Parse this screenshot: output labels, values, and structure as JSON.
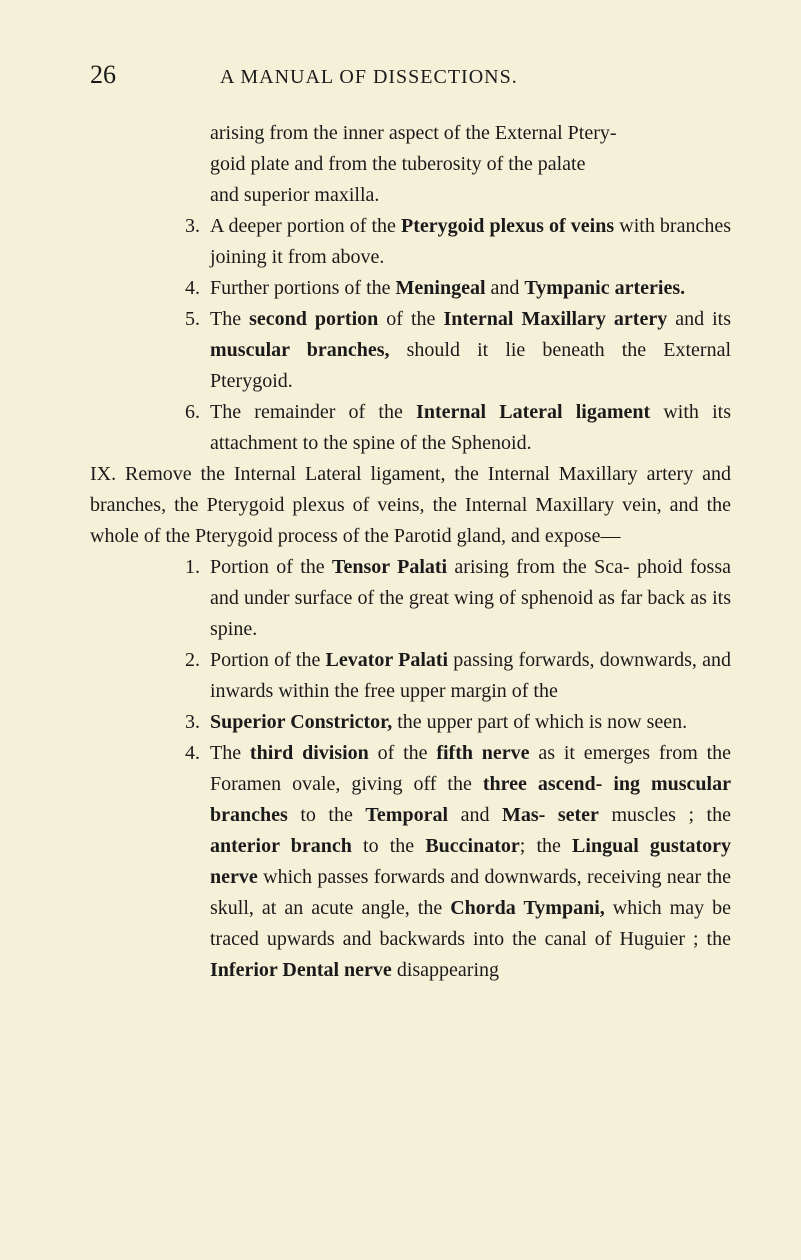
{
  "page_number": "26",
  "running_title": "A MANUAL OF DISSECTIONS.",
  "background_color": "#f5f0d8",
  "text_color": "#1a1a1a",
  "font_size_body": 20,
  "font_size_pagenum": 26,
  "font_size_header": 20,
  "cont1_a": "arising from the inner aspect of the External Ptery-",
  "cont1_b": "goid plate and from the tuberosity of the palate",
  "cont1_c": "and superior maxilla.",
  "n3": "3.",
  "i3a": "A deeper portion of the ",
  "i3b": "Pterygoid plexus of veins",
  "i3c": " with branches joining it from above.",
  "n4": "4.",
  "i4a": "Further portions of the ",
  "i4b": "Meningeal",
  "i4c": " and ",
  "i4d": "Tympanic arteries.",
  "n5": "5.",
  "i5a": "The ",
  "i5b": "second portion",
  "i5c": " of the ",
  "i5d": "Internal Maxillary artery",
  "i5e": " and its ",
  "i5f": "muscular branches,",
  "i5g": " should it lie beneath the External Pterygoid.",
  "n6": "6.",
  "i6a": "The remainder of the ",
  "i6b": "Internal Lateral ligament",
  "i6c": " with its attachment to the spine of the Sphenoid.",
  "px_a": "IX.  Remove the Internal Lateral ligament, the Internal Maxillary artery and branches, the Pterygoid plexus of veins, the Internal Maxillary vein, and the whole of the Pterygoid process of the Parotid gland, and expose—",
  "m1": "1.",
  "j1a": "Portion of the ",
  "j1b": "Tensor Palati",
  "j1c": " arising from the Sca- phoid fossa and under surface of the great wing of sphenoid as far back as its spine.",
  "m2": "2.",
  "j2a": "Portion of the ",
  "j2b": "Levator Palati",
  "j2c": " passing forwards, downwards, and inwards within the free upper margin of the",
  "m3": "3.",
  "j3a": "Superior Constrictor,",
  "j3b": " the upper part of which is now seen.",
  "m4": "4.",
  "j4a": "The ",
  "j4b": "third division",
  "j4c": " of the ",
  "j4d": "fifth nerve",
  "j4e": " as it emerges from the Foramen ovale, giving off the ",
  "j4f": "three ascend- ing muscular branches",
  "j4g": " to the ",
  "j4h": "Temporal",
  "j4i": " and ",
  "j4j": "Mas- seter",
  "j4k": " muscles ; the ",
  "j4l": "anterior branch",
  "j4m": " to the ",
  "j4n": "Buccinator",
  "j4o": "; the ",
  "j4p": "Lingual gustatory nerve",
  "j4q": " which passes forwards and downwards, receiving near the skull, at an acute angle, the ",
  "j4r": "Chorda Tympani,",
  "j4s": " which may be traced upwards and backwards into the canal of Huguier ; the ",
  "j4t": "Inferior Dental nerve",
  "j4u": " disappearing"
}
